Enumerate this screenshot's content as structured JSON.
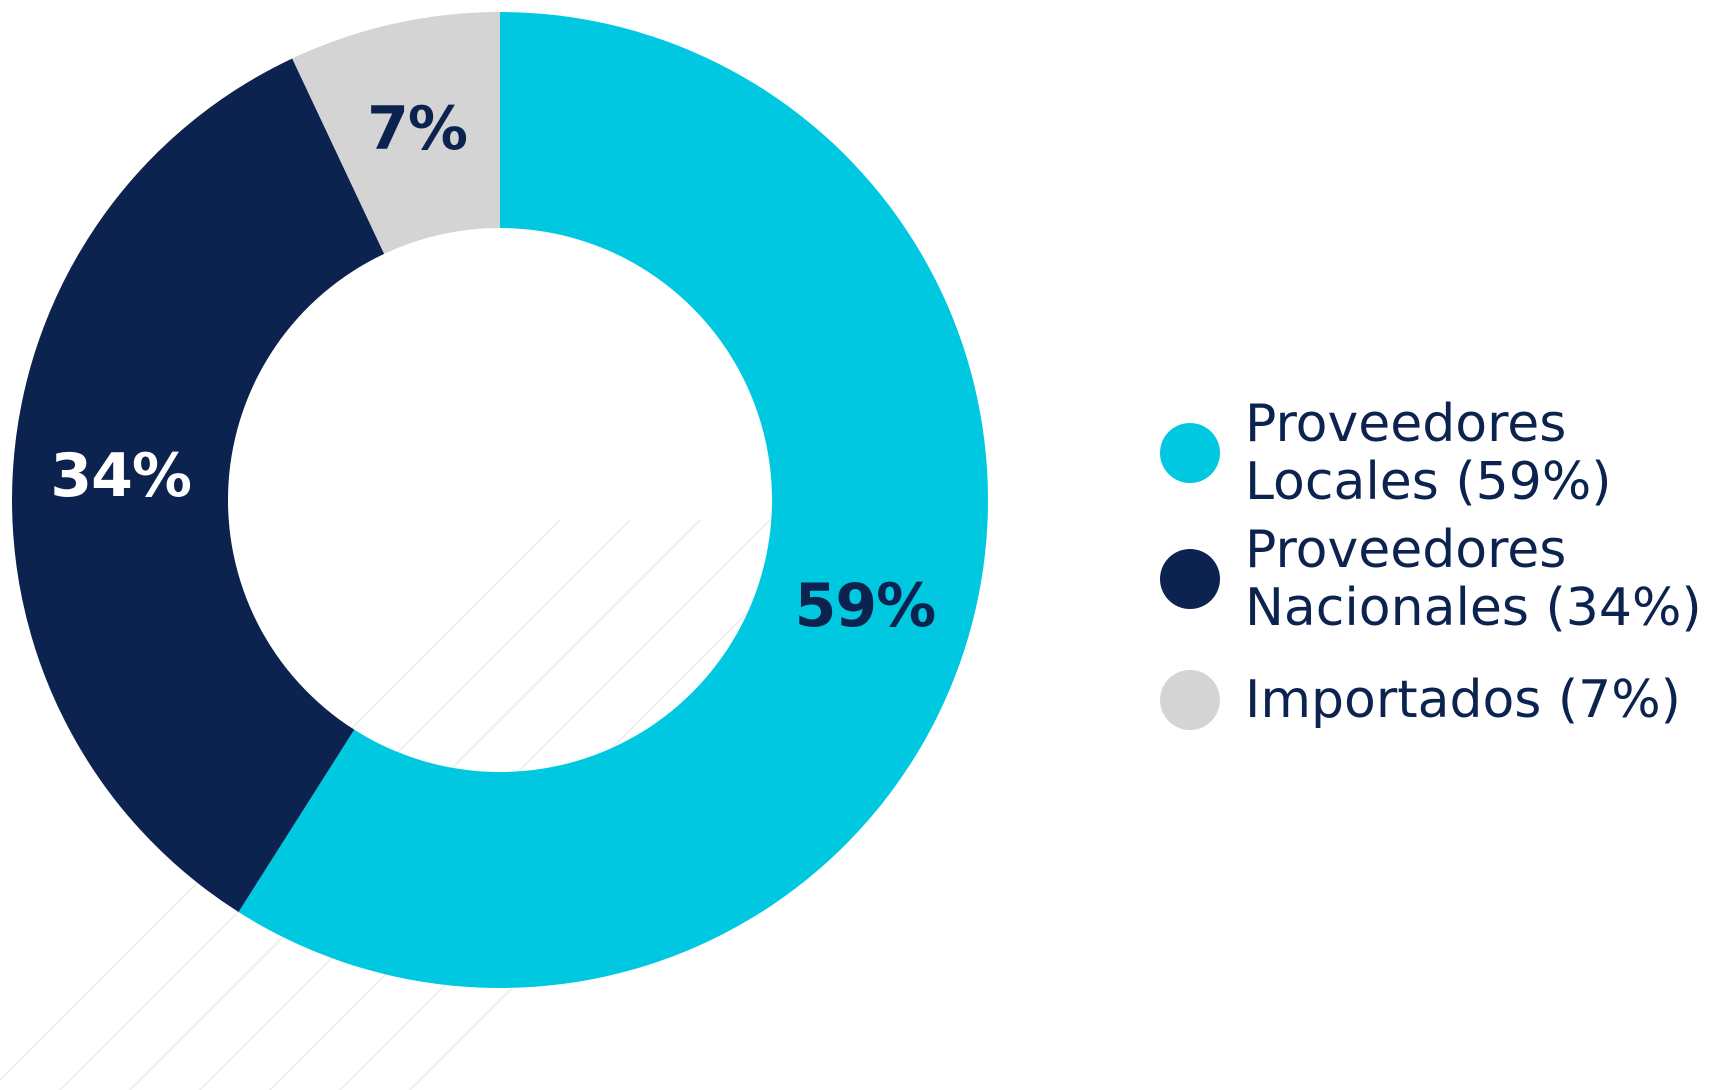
{
  "chart_data": {
    "type": "pie",
    "donut": true,
    "categories": [
      "Proveedores Locales",
      "Proveedores Nacionales",
      "Importados"
    ],
    "values": [
      59,
      34,
      7
    ],
    "unit": "%",
    "colors": [
      "#00c8e0",
      "#0c2350",
      "#d4d4d4"
    ],
    "slice_labels": [
      "59%",
      "34%",
      "7%"
    ],
    "slice_label_colors": [
      "#0c2350",
      "#ffffff",
      "#0c2350"
    ],
    "legend": {
      "position": "right",
      "entries": [
        {
          "lines": [
            "Proveedores",
            "Locales (59%)"
          ],
          "color": "#00c8e0"
        },
        {
          "lines": [
            "Proveedores",
            "Nacionales (34%)"
          ],
          "color": "#0c2350"
        },
        {
          "lines": [
            "Importados (7%)"
          ],
          "color": "#d4d4d4"
        }
      ]
    },
    "legend_text_color": "#0c2350"
  }
}
